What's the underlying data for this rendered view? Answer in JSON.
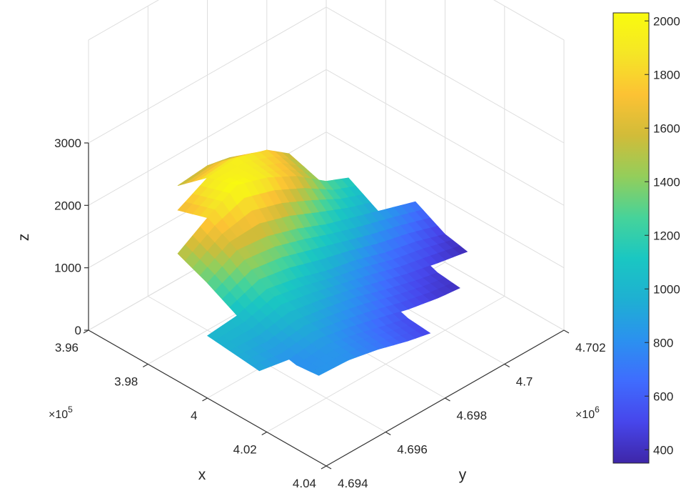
{
  "chart_data": {
    "type": "surface",
    "title": "",
    "xlabel": "x",
    "ylabel": "y",
    "zlabel": "z",
    "x_ticks": [
      "3.96",
      "3.98",
      "4",
      "4.02",
      "4.04"
    ],
    "x_multiplier": "×10",
    "x_exponent": "5",
    "y_ticks": [
      "4.694",
      "4.696",
      "4.698",
      "4.7",
      "4.702"
    ],
    "y_multiplier": "×10",
    "y_exponent": "6",
    "z_ticks": [
      "0",
      "1000",
      "2000",
      "3000"
    ],
    "xlim": [
      396000,
      404000
    ],
    "ylim": [
      4694000,
      4702000
    ],
    "zlim": [
      0,
      3000
    ],
    "colormap": "parula",
    "colorbar": {
      "ticks": [
        "400",
        "600",
        "800",
        "1000",
        "1200",
        "1400",
        "1600",
        "1800",
        "2000"
      ],
      "range": [
        350,
        2030
      ],
      "colors": [
        "#3e26a8",
        "#4746eb",
        "#3f6cfe",
        "#2b91ef",
        "#1eb0d2",
        "#1ac7c2",
        "#46d39a",
        "#93ce5b",
        "#d1bc39",
        "#fcc234",
        "#f5e626",
        "#f9fb0e"
      ]
    },
    "grid": true,
    "surface": {
      "description_values": "elevation (z) sampled on a regular x–y grid; rows = x from 396000 to 404000 step 1000, columns = y from 4694000 to 4702000 step 1000",
      "x": [
        396000,
        397000,
        398000,
        399000,
        400000,
        401000,
        402000,
        403000,
        404000
      ],
      "y": [
        4694000,
        4695000,
        4696000,
        4697000,
        4698000,
        4699000,
        4700000,
        4701000,
        4702000
      ],
      "z": [
        [
          null,
          null,
          null,
          1500,
          1550,
          1450,
          null,
          null,
          null
        ],
        [
          null,
          null,
          1650,
          1900,
          1950,
          1800,
          1450,
          null,
          null
        ],
        [
          null,
          1500,
          1800,
          2050,
          1900,
          1650,
          1300,
          1100,
          null
        ],
        [
          null,
          1300,
          1550,
          1500,
          1350,
          1150,
          1000,
          850,
          700
        ],
        [
          1000,
          1050,
          1200,
          1100,
          950,
          850,
          700,
          600,
          450
        ],
        [
          950,
          900,
          980,
          900,
          800,
          650,
          520,
          420,
          350
        ],
        [
          900,
          800,
          850,
          750,
          620,
          500,
          420,
          380,
          null
        ],
        [
          null,
          850,
          800,
          700,
          560,
          460,
          null,
          null,
          null
        ],
        [
          null,
          null,
          null,
          null,
          null,
          null,
          null,
          null,
          null
        ]
      ]
    }
  }
}
